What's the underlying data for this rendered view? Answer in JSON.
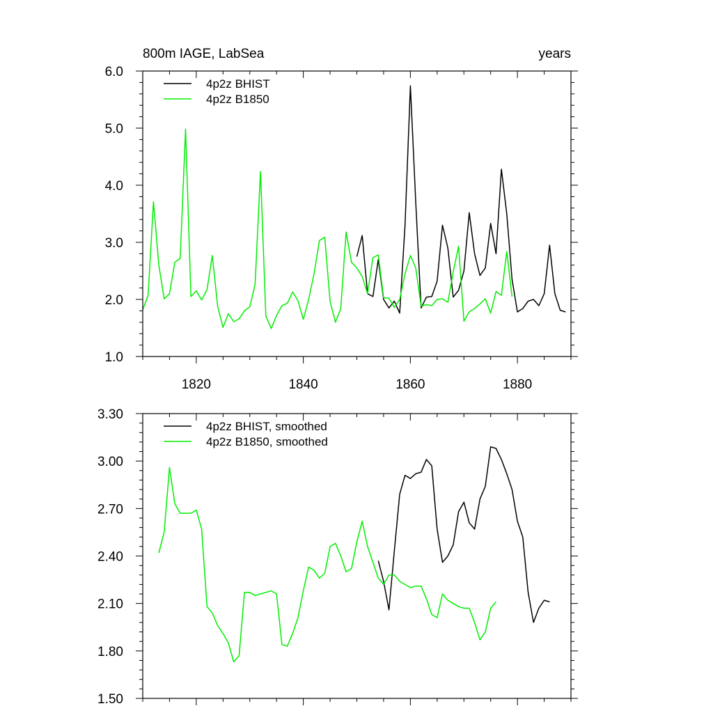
{
  "chart_data": [
    {
      "type": "line",
      "title": "800m IAGE, LabSea",
      "units": "years",
      "xlim": [
        1810,
        1890
      ],
      "ylim": [
        1.0,
        6.0
      ],
      "x_ticks": [
        1820,
        1840,
        1860,
        1880
      ],
      "x_tick_labels": [
        "1820",
        "1840",
        "1860",
        "1880"
      ],
      "y_ticks": [
        1.0,
        2.0,
        3.0,
        4.0,
        5.0,
        6.0
      ],
      "y_tick_labels": [
        "1.0",
        "2.0",
        "3.0",
        "4.0",
        "5.0",
        "6.0"
      ],
      "legend_position": "top-left",
      "series": [
        {
          "name": "4p2z BHIST",
          "color": "#000000",
          "x": [
            1850,
            1851,
            1852,
            1853,
            1854,
            1855,
            1856,
            1857,
            1858,
            1859,
            1860,
            1861,
            1862,
            1863,
            1864,
            1865,
            1866,
            1867,
            1868,
            1869,
            1870,
            1871,
            1872,
            1873,
            1874,
            1875,
            1876,
            1877,
            1878,
            1879,
            1880,
            1881,
            1882,
            1883,
            1884,
            1885,
            1886,
            1887,
            1888,
            1889
          ],
          "y": [
            2.75,
            3.12,
            2.1,
            2.05,
            2.7,
            2.0,
            1.85,
            1.97,
            1.76,
            3.3,
            5.74,
            3.7,
            1.85,
            2.04,
            2.05,
            2.32,
            3.3,
            2.9,
            2.04,
            2.16,
            2.5,
            3.52,
            2.8,
            2.42,
            2.55,
            3.33,
            2.8,
            4.28,
            3.5,
            2.35,
            1.78,
            1.84,
            1.97,
            2.0,
            1.89,
            2.1,
            2.95,
            2.1,
            1.81,
            1.78
          ]
        },
        {
          "name": "4p2z B1850",
          "color": "#00ee00",
          "x": [
            1810,
            1811,
            1812,
            1813,
            1814,
            1815,
            1816,
            1817,
            1818,
            1819,
            1820,
            1821,
            1822,
            1823,
            1824,
            1825,
            1826,
            1827,
            1828,
            1829,
            1830,
            1831,
            1832,
            1833,
            1834,
            1835,
            1836,
            1837,
            1838,
            1839,
            1840,
            1841,
            1842,
            1843,
            1844,
            1845,
            1846,
            1847,
            1848,
            1849,
            1850,
            1851,
            1852,
            1853,
            1854,
            1855,
            1856,
            1857,
            1858,
            1859,
            1860,
            1861,
            1862,
            1863,
            1864,
            1865,
            1866,
            1867,
            1868,
            1869,
            1870,
            1871,
            1872,
            1873,
            1874,
            1875,
            1876,
            1877,
            1878,
            1879
          ],
          "y": [
            1.82,
            2.07,
            3.71,
            2.6,
            2.01,
            2.1,
            2.65,
            2.72,
            4.98,
            2.05,
            2.15,
            1.99,
            2.17,
            2.77,
            1.88,
            1.51,
            1.75,
            1.61,
            1.66,
            1.8,
            1.87,
            2.27,
            4.24,
            1.71,
            1.49,
            1.72,
            1.89,
            1.93,
            2.13,
            1.98,
            1.65,
            2.0,
            2.45,
            3.03,
            3.09,
            1.96,
            1.6,
            1.84,
            3.18,
            2.65,
            2.55,
            2.4,
            2.1,
            2.73,
            2.78,
            2.03,
            2.02,
            1.86,
            2.0,
            2.45,
            2.77,
            2.55,
            1.88,
            1.91,
            1.89,
            2.0,
            2.01,
            1.95,
            2.48,
            2.93,
            1.62,
            1.78,
            1.84,
            1.92,
            2.01,
            1.76,
            2.14,
            2.07,
            2.84,
            2.05
          ]
        }
      ]
    },
    {
      "type": "line",
      "title": "",
      "xlim": [
        1810,
        1890
      ],
      "ylim": [
        1.5,
        3.3
      ],
      "x_ticks": [
        1820,
        1840,
        1860,
        1880
      ],
      "y_ticks": [
        1.5,
        1.8,
        2.1,
        2.4,
        2.7,
        3.0,
        3.3
      ],
      "y_tick_labels": [
        "1.50",
        "1.80",
        "2.10",
        "2.40",
        "2.70",
        "3.00",
        "3.30"
      ],
      "legend_position": "top-left",
      "series": [
        {
          "name": "4p2z BHIST, smoothed",
          "color": "#000000",
          "x": [
            1854,
            1855,
            1856,
            1857,
            1858,
            1859,
            1860,
            1861,
            1862,
            1863,
            1864,
            1865,
            1866,
            1867,
            1868,
            1869,
            1870,
            1871,
            1872,
            1873,
            1874,
            1875,
            1876,
            1877,
            1878,
            1879,
            1880,
            1881,
            1882,
            1883,
            1884,
            1885,
            1886
          ],
          "y": [
            2.37,
            2.24,
            2.06,
            2.43,
            2.79,
            2.91,
            2.89,
            2.92,
            2.93,
            3.01,
            2.97,
            2.57,
            2.36,
            2.4,
            2.47,
            2.68,
            2.74,
            2.61,
            2.57,
            2.76,
            2.84,
            3.09,
            3.08,
            3.01,
            2.92,
            2.82,
            2.62,
            2.52,
            2.17,
            1.98,
            2.07,
            2.12,
            2.11
          ]
        },
        {
          "name": "4p2z B1850, smoothed",
          "color": "#00ee00",
          "x": [
            1813,
            1814,
            1815,
            1816,
            1817,
            1818,
            1819,
            1820,
            1821,
            1822,
            1823,
            1824,
            1825,
            1826,
            1827,
            1828,
            1829,
            1830,
            1831,
            1832,
            1833,
            1834,
            1835,
            1836,
            1837,
            1838,
            1839,
            1840,
            1841,
            1842,
            1843,
            1844,
            1845,
            1846,
            1847,
            1848,
            1849,
            1850,
            1851,
            1852,
            1853,
            1854,
            1855,
            1856,
            1857,
            1858,
            1859,
            1860,
            1861,
            1862,
            1863,
            1864,
            1865,
            1866,
            1867,
            1868,
            1869,
            1870,
            1871,
            1872,
            1873,
            1874,
            1875,
            1876
          ],
          "y": [
            2.42,
            2.55,
            2.96,
            2.73,
            2.67,
            2.67,
            2.67,
            2.69,
            2.57,
            2.08,
            2.04,
            1.96,
            1.91,
            1.85,
            1.73,
            1.77,
            2.17,
            2.17,
            2.15,
            2.16,
            2.17,
            2.18,
            2.16,
            1.84,
            1.83,
            1.91,
            2.01,
            2.18,
            2.33,
            2.31,
            2.26,
            2.29,
            2.46,
            2.48,
            2.4,
            2.3,
            2.32,
            2.49,
            2.62,
            2.46,
            2.36,
            2.26,
            2.22,
            2.28,
            2.28,
            2.24,
            2.22,
            2.2,
            2.21,
            2.21,
            2.13,
            2.03,
            2.01,
            2.16,
            2.12,
            2.1,
            2.08,
            2.07,
            2.07,
            1.98,
            1.87,
            1.92,
            2.07,
            2.11
          ]
        }
      ]
    }
  ]
}
